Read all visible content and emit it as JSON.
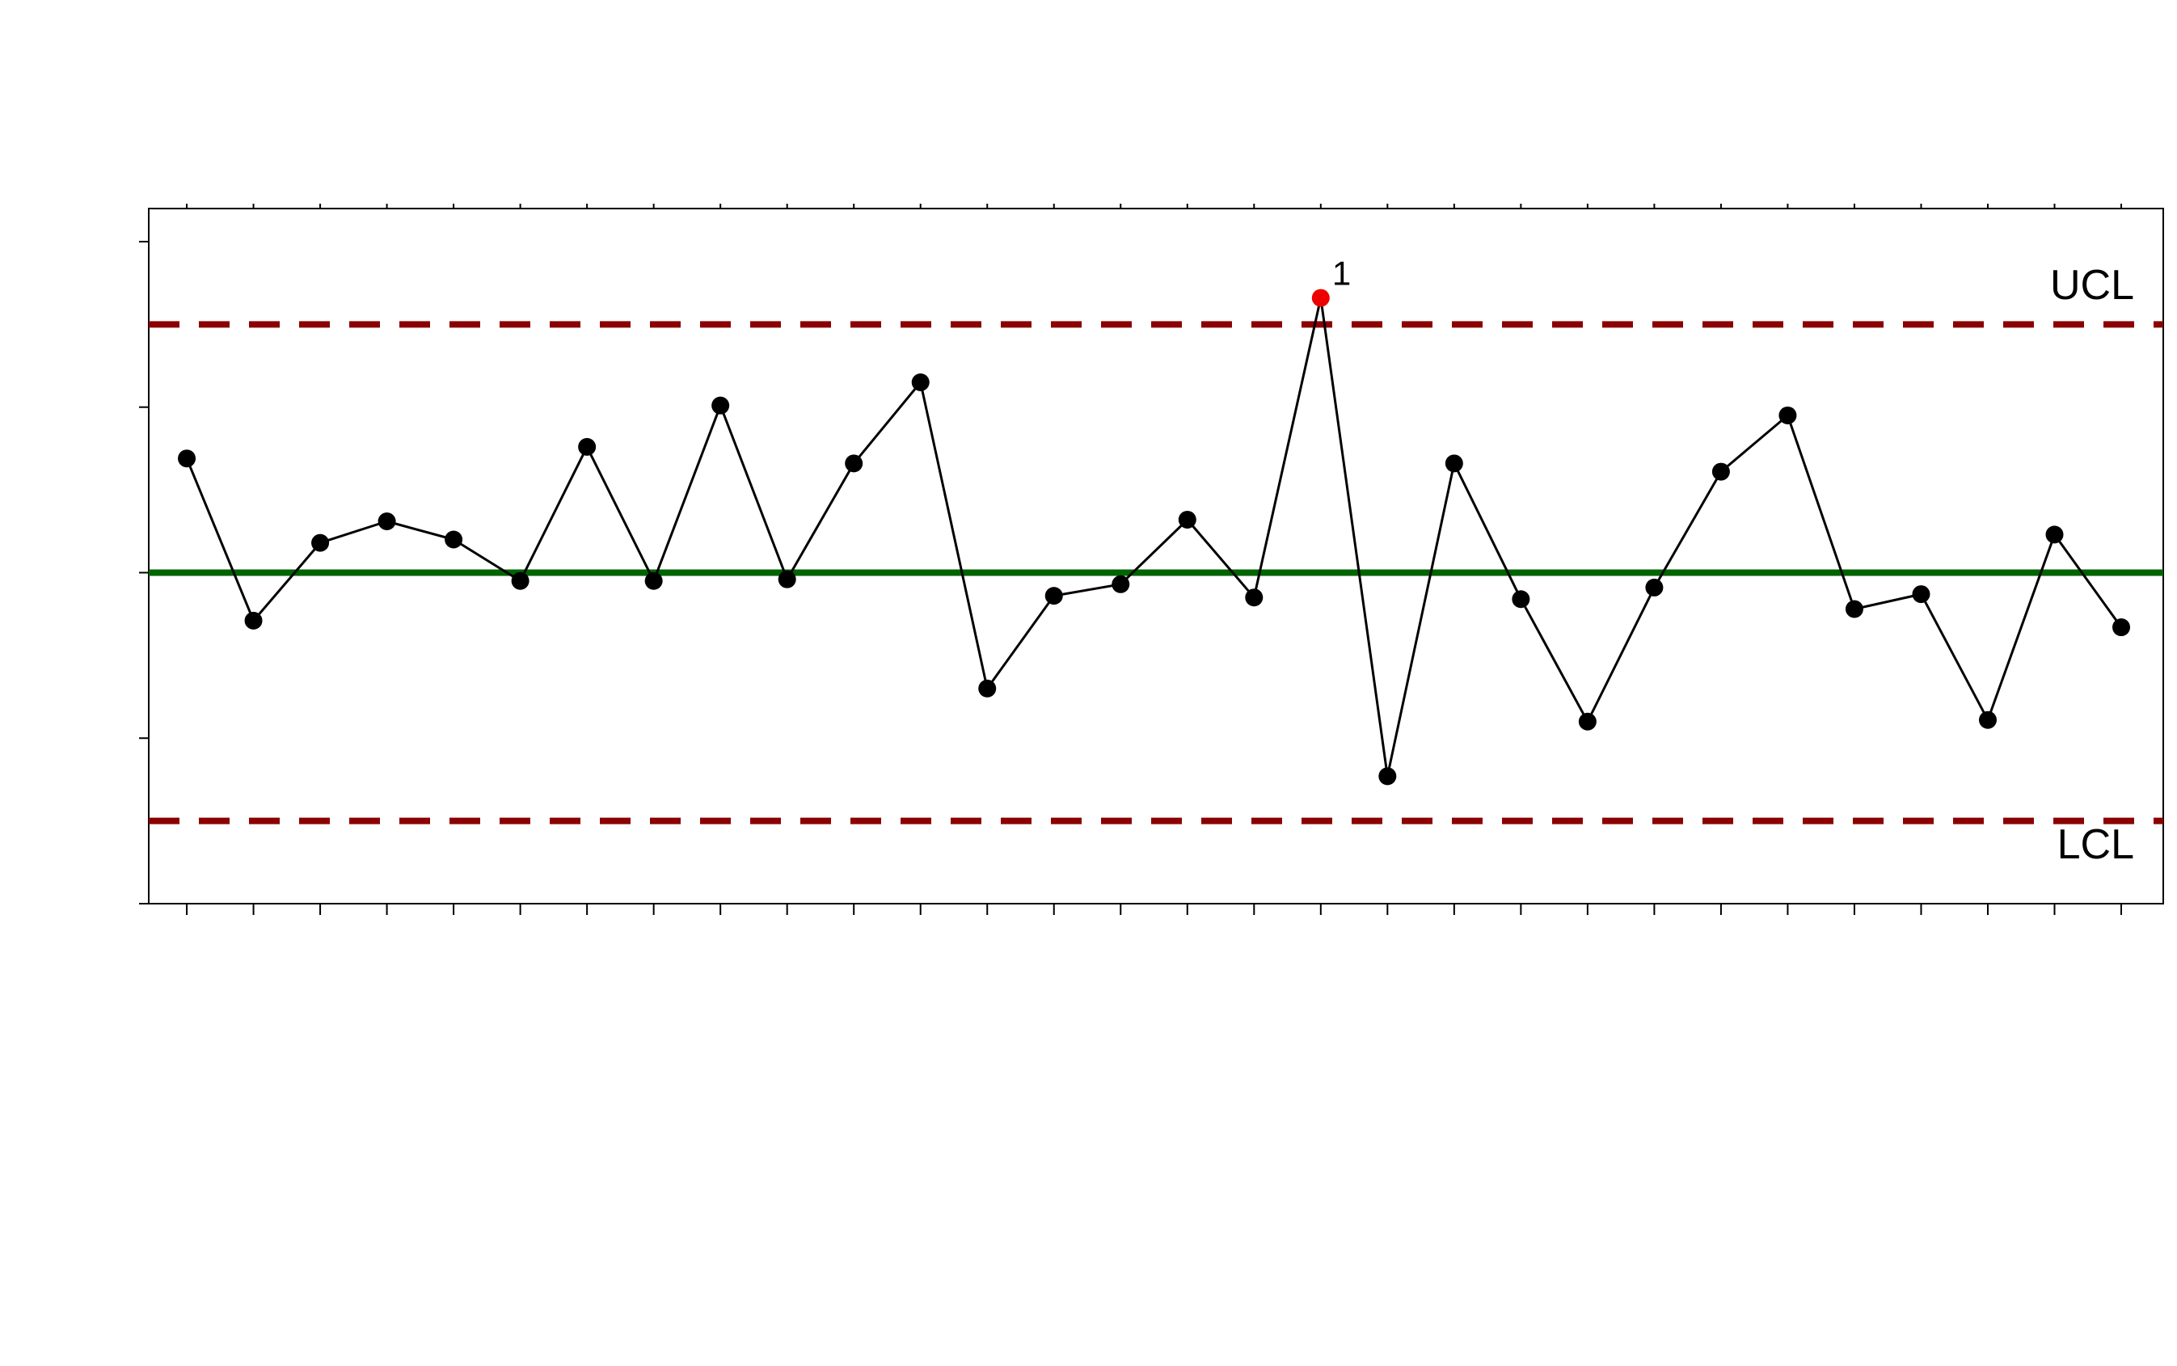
{
  "chart_data": {
    "type": "line",
    "title": "",
    "xlabel": "",
    "ylabel": "",
    "x": [
      1,
      2,
      3,
      4,
      5,
      6,
      7,
      8,
      9,
      10,
      11,
      12,
      13,
      14,
      15,
      16,
      17,
      18,
      19,
      20,
      21,
      22,
      23,
      24,
      25,
      26,
      27,
      28,
      29,
      30
    ],
    "y": [
      0.69,
      -0.29,
      0.18,
      0.31,
      0.2,
      -0.05,
      0.76,
      -0.05,
      1.01,
      -0.04,
      0.66,
      1.15,
      -0.7,
      -0.14,
      -0.07,
      0.32,
      -0.15,
      1.66,
      -1.23,
      0.66,
      -0.16,
      -0.9,
      -0.09,
      0.61,
      0.95,
      -0.22,
      -0.13,
      -0.89,
      0.23,
      -0.33
    ],
    "ylim": [
      -2.0,
      2.2
    ],
    "xlim": [
      0.43,
      30.63
    ],
    "yticks": [
      -2,
      -1,
      0,
      1,
      2
    ],
    "xticks": [
      1,
      2,
      3,
      4,
      5,
      6,
      7,
      8,
      9,
      10,
      11,
      12,
      13,
      14,
      15,
      16,
      17,
      18,
      19,
      20,
      21,
      22,
      23,
      24,
      25,
      26,
      27,
      28,
      29,
      30
    ],
    "center_line": 0,
    "ucl": 1.5,
    "lcl": -1.5,
    "limit_labels": {
      "ucl": "UCL",
      "lcl": "LCL"
    },
    "violations": [
      {
        "index": 18,
        "label": "1"
      }
    ],
    "grid": false,
    "colors": {
      "point": "#000000",
      "violation": "#ee0000",
      "line": "#000000",
      "center": "#006400",
      "limits": "#8b0000"
    }
  }
}
